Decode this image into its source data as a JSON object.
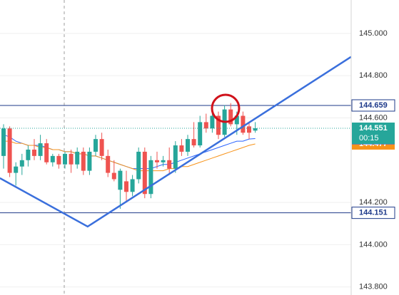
{
  "chart_data": {
    "type": "candlestick",
    "ylim": [
      143.762,
      145.158
    ],
    "yticks": [
      {
        "value": 145,
        "label": "145.000"
      },
      {
        "value": 144.8,
        "label": "144.800"
      },
      {
        "value": 144.6,
        "label": "144.600"
      },
      {
        "value": 144.2,
        "label": "144.200"
      },
      {
        "value": 144,
        "label": "144.000"
      },
      {
        "value": 143.8,
        "label": "143.800"
      }
    ],
    "grid": true,
    "up_color": "#26a69a",
    "down_color": "#ef5350",
    "candles": {
      "open": [
        144.42,
        144.55,
        144.34,
        144.37,
        144.4,
        144.45,
        144.42,
        144.48,
        144.39,
        144.42,
        144.38,
        144.43,
        144.38,
        144.44,
        144.35,
        144.44,
        144.5,
        144.42,
        144.34,
        144.26,
        144.3,
        144.25,
        144.31,
        144.44,
        144.24,
        144.4,
        144.39,
        144.4,
        144.36,
        144.47,
        144.44,
        144.5,
        144.47,
        144.58,
        144.55,
        144.61,
        144.52,
        144.64,
        144.57,
        144.61,
        144.56,
        144.54
      ],
      "high": [
        144.57,
        144.56,
        144.39,
        144.43,
        144.47,
        144.5,
        144.52,
        144.5,
        144.43,
        144.43,
        144.44,
        144.45,
        144.46,
        144.46,
        144.46,
        144.52,
        144.53,
        144.45,
        144.4,
        144.36,
        144.35,
        144.33,
        144.46,
        144.46,
        144.42,
        144.44,
        144.42,
        144.46,
        144.49,
        144.5,
        144.52,
        144.58,
        144.61,
        144.62,
        144.63,
        144.63,
        144.66,
        144.67,
        144.63,
        144.63,
        144.58,
        144.58
      ],
      "low": [
        144.36,
        144.32,
        144.28,
        144.33,
        144.37,
        144.4,
        144.4,
        144.38,
        144.37,
        144.36,
        144.36,
        144.34,
        144.36,
        144.33,
        144.33,
        144.42,
        144.4,
        144.32,
        144.3,
        144.17,
        144.2,
        144.23,
        144.29,
        144.22,
        144.22,
        144.36,
        144.37,
        144.33,
        144.34,
        144.42,
        144.42,
        144.46,
        144.46,
        144.53,
        144.53,
        144.5,
        144.51,
        144.56,
        144.52,
        144.52,
        144.5,
        144.53
      ],
      "close": [
        144.55,
        144.34,
        144.37,
        144.4,
        144.45,
        144.42,
        144.48,
        144.39,
        144.42,
        144.38,
        144.43,
        144.38,
        144.44,
        144.35,
        144.44,
        144.5,
        144.42,
        144.34,
        144.31,
        144.35,
        144.25,
        144.31,
        144.44,
        144.24,
        144.4,
        144.39,
        144.4,
        144.36,
        144.47,
        144.44,
        144.5,
        144.47,
        144.58,
        144.55,
        144.61,
        144.52,
        144.64,
        144.57,
        144.61,
        144.53,
        144.53,
        144.551
      ]
    },
    "moving_averages": [
      {
        "color": "#2962ff",
        "values": [
          144.52,
          144.51,
          144.49,
          144.48,
          144.47,
          144.47,
          144.47,
          144.46,
          144.45,
          144.45,
          144.44,
          144.44,
          144.43,
          144.43,
          144.42,
          144.42,
          144.41,
          144.4,
          144.39,
          144.38,
          144.37,
          144.36,
          144.36,
          144.36,
          144.36,
          144.37,
          144.38,
          144.38,
          144.39,
          144.4,
          144.41,
          144.42,
          144.43,
          144.44,
          144.45,
          144.46,
          144.47,
          144.48,
          144.49,
          144.49,
          144.5,
          144.502
        ]
      },
      {
        "color": "#f7931a",
        "values": [
          144.49,
          144.49,
          144.48,
          144.48,
          144.47,
          144.47,
          144.46,
          144.46,
          144.45,
          144.45,
          144.44,
          144.44,
          144.43,
          144.43,
          144.42,
          144.42,
          144.41,
          144.4,
          144.39,
          144.38,
          144.37,
          144.36,
          144.35,
          144.35,
          144.35,
          144.35,
          144.35,
          144.36,
          144.36,
          144.37,
          144.37,
          144.38,
          144.39,
          144.4,
          144.41,
          144.42,
          144.43,
          144.44,
          144.45,
          144.46,
          144.47,
          144.477
        ]
      }
    ],
    "trendline": {
      "color": "#3a6fdc",
      "x": [
        -0.6,
        13.7,
        56.6
      ],
      "values": [
        144.315,
        144.086,
        144.889
      ]
    },
    "levels": [
      {
        "value": 144.659,
        "color": "#1e3a8a"
      },
      {
        "value": 144.151,
        "color": "#1e3a8a"
      }
    ],
    "countdown": "00:15"
  }
}
